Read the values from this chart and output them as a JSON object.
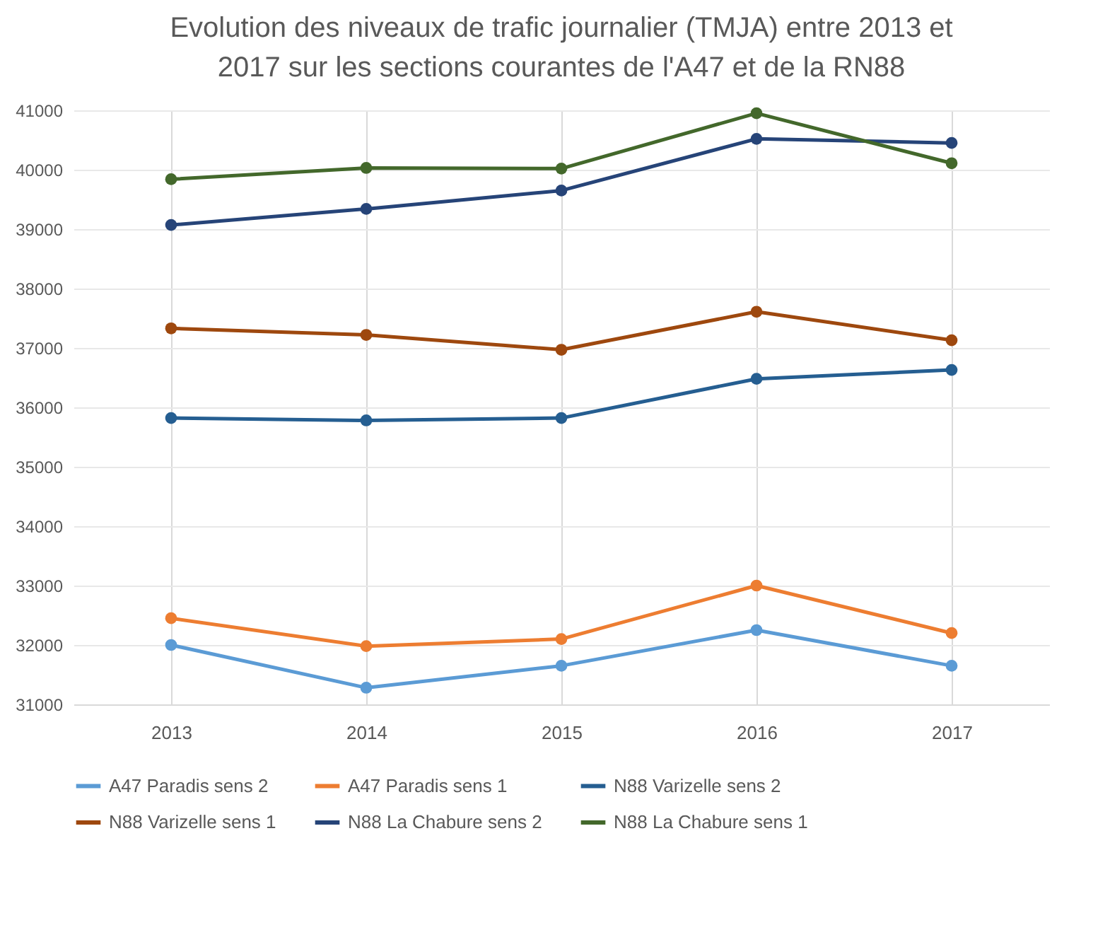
{
  "chart_data": {
    "type": "line",
    "title": "Evolution des niveaux de trafic journalier (TMJA) entre 2013 et 2017 sur les sections courantes de l'A47 et de la RN88",
    "categories": [
      "2013",
      "2014",
      "2015",
      "2016",
      "2017"
    ],
    "series": [
      {
        "name": "A47 Paradis sens 2",
        "color": "#5b9bd5",
        "values": [
          32000,
          31280,
          31650,
          32250,
          31650
        ]
      },
      {
        "name": "A47 Paradis sens 1",
        "color": "#ed7d31",
        "values": [
          32450,
          31980,
          32100,
          33000,
          32200
        ]
      },
      {
        "name": "N88 Varizelle sens 2",
        "color": "#255e91",
        "values": [
          35820,
          35780,
          35820,
          36480,
          36630
        ]
      },
      {
        "name": "N88 Varizelle sens 1",
        "color": "#9e480e",
        "values": [
          37330,
          37220,
          36970,
          37610,
          37130
        ]
      },
      {
        "name": "N88 La Chabure sens 2",
        "color": "#264478",
        "values": [
          39070,
          39340,
          39650,
          40520,
          40450
        ]
      },
      {
        "name": "N88 La Chabure sens 1",
        "color": "#43682b",
        "values": [
          39840,
          40030,
          40020,
          40950,
          40110
        ]
      }
    ],
    "ylim": [
      31000,
      41000
    ],
    "yticks": [
      31000,
      32000,
      33000,
      34000,
      35000,
      36000,
      37000,
      38000,
      39000,
      40000,
      41000
    ],
    "grid": true,
    "legend": "bottom",
    "marker": "circle",
    "line_style": "solid"
  }
}
